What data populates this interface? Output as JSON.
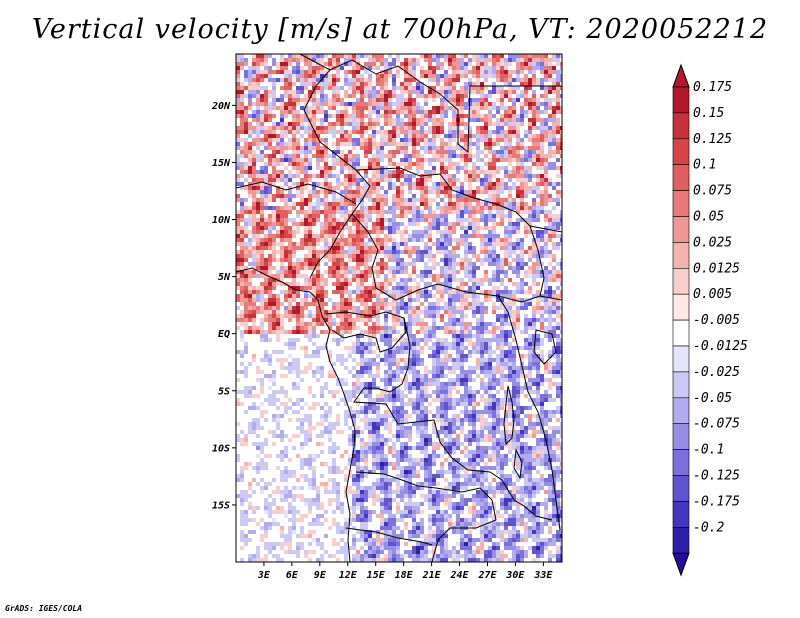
{
  "title": "Vertical velocity [m/s] at 700hPa, VT: 2020052212",
  "footer": "GrADS: IGES/COLA",
  "map": {
    "variable": "Vertical velocity",
    "units": "m/s",
    "level": "700hPa",
    "valid_time": "2020052212",
    "lon_range": [
      0,
      35
    ],
    "lat_range": [
      -20,
      24.5
    ],
    "lat_ticks": [
      {
        "value": 20,
        "label": "20N"
      },
      {
        "value": 15,
        "label": "15N"
      },
      {
        "value": 10,
        "label": "10N"
      },
      {
        "value": 5,
        "label": "5N"
      },
      {
        "value": 0,
        "label": "EQ"
      },
      {
        "value": -5,
        "label": "5S"
      },
      {
        "value": -10,
        "label": "10S"
      },
      {
        "value": -15,
        "label": "15S"
      }
    ],
    "lon_ticks": [
      {
        "value": 3,
        "label": "3E"
      },
      {
        "value": 6,
        "label": "6E"
      },
      {
        "value": 9,
        "label": "9E"
      },
      {
        "value": 12,
        "label": "12E"
      },
      {
        "value": 15,
        "label": "15E"
      },
      {
        "value": 18,
        "label": "18E"
      },
      {
        "value": 21,
        "label": "21E"
      },
      {
        "value": 24,
        "label": "24E"
      },
      {
        "value": 27,
        "label": "27E"
      },
      {
        "value": 30,
        "label": "30E"
      },
      {
        "value": 33,
        "label": "33E"
      }
    ]
  },
  "colorbar": {
    "top_color": "#b2182b",
    "bottom_color": "#2a0a9a",
    "bins": [
      {
        "label": "0.175",
        "color": "#b2182b"
      },
      {
        "label": "0.15",
        "color": "#c8303a"
      },
      {
        "label": "0.125",
        "color": "#d6454a"
      },
      {
        "label": "0.1",
        "color": "#e0605f"
      },
      {
        "label": "0.075",
        "color": "#e87b78"
      },
      {
        "label": "0.05",
        "color": "#ef9794"
      },
      {
        "label": "0.025",
        "color": "#f5b3b0"
      },
      {
        "label": "0.0125",
        "color": "#f9cfcd"
      },
      {
        "label": "0.005",
        "color": "#fde8e7"
      },
      {
        "label": "-0.005",
        "color": "#ffffff"
      },
      {
        "label": "-0.0125",
        "color": "#e6e4fb"
      },
      {
        "label": "-0.025",
        "color": "#cdc9f5"
      },
      {
        "label": "-0.05",
        "color": "#b2acef"
      },
      {
        "label": "-0.075",
        "color": "#978ee6"
      },
      {
        "label": "-0.1",
        "color": "#7b70dc"
      },
      {
        "label": "-0.125",
        "color": "#5f53cf"
      },
      {
        "label": "-0.175",
        "color": "#4536bf"
      },
      {
        "label": "-0.2",
        "color": "#2e1fa8"
      }
    ]
  }
}
